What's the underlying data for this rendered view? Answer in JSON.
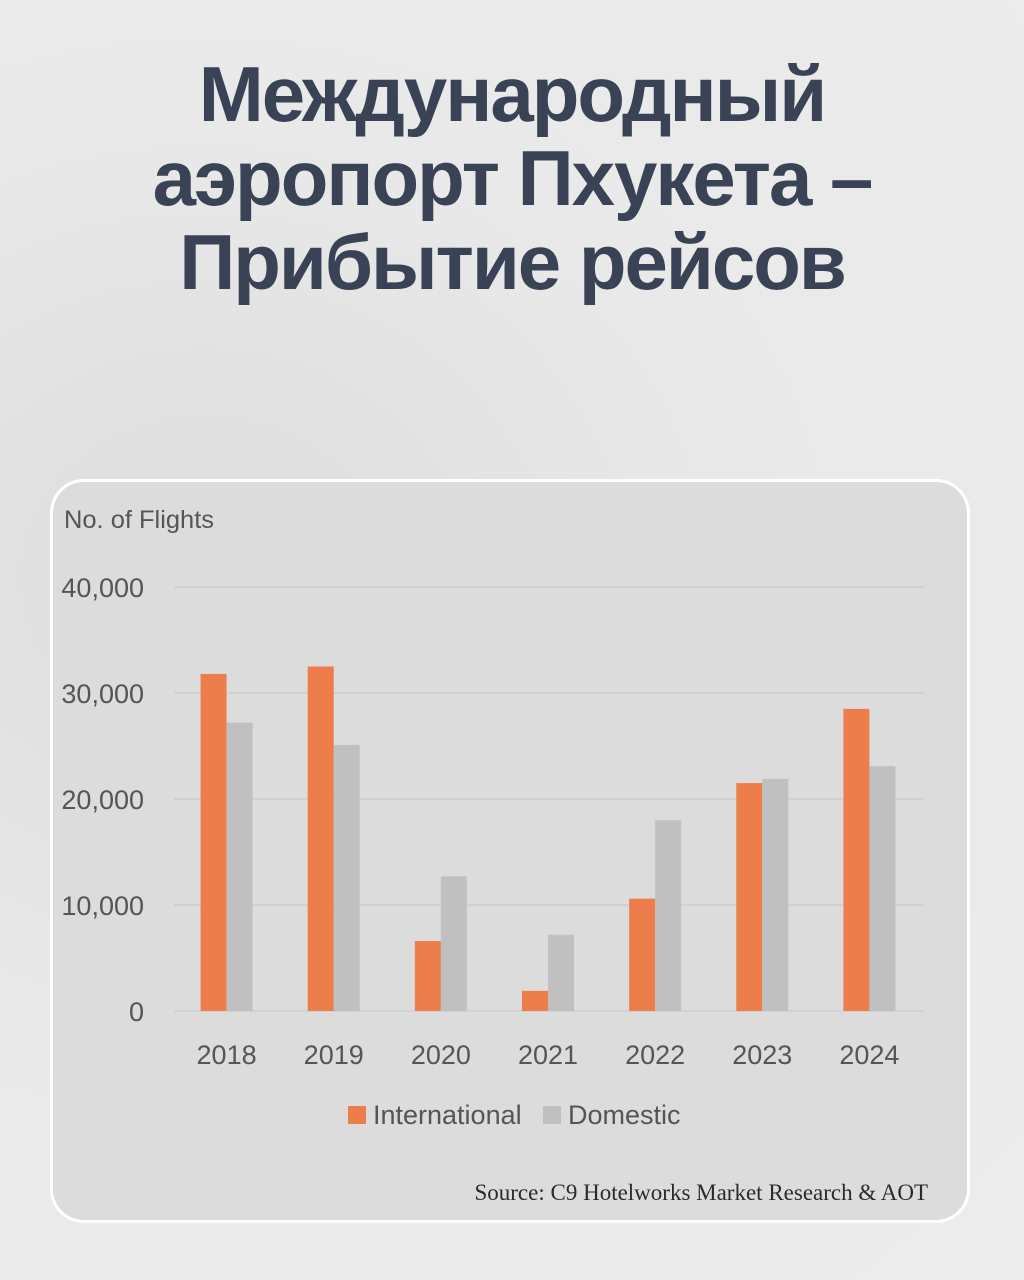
{
  "title": {
    "line1": "Международный",
    "line2": "аэропорт Пхукета –",
    "line3": "Прибытие рейсов"
  },
  "source": "Source: C9 Hotelworks Market Research & AOT",
  "colors": {
    "international": "#ee7d4c",
    "domestic": "#c0c0c0",
    "title": "#3a4256"
  },
  "chart_data": {
    "type": "bar",
    "ylabel": "No. of Flights",
    "xlabel": "",
    "categories": [
      "2018",
      "2019",
      "2020",
      "2021",
      "2022",
      "2023",
      "2024"
    ],
    "series": [
      {
        "name": "International",
        "values": [
          31800,
          32500,
          6600,
          1900,
          10600,
          21500,
          28500
        ]
      },
      {
        "name": "Domestic",
        "values": [
          27200,
          25100,
          12700,
          7200,
          18000,
          21900,
          23100
        ]
      }
    ],
    "ylim": [
      0,
      40000
    ],
    "yticks": [
      "0",
      "10,000",
      "20,000",
      "30,000",
      "40,000"
    ],
    "ytick_values": [
      0,
      10000,
      20000,
      30000,
      40000
    ],
    "grid": true,
    "legend": "bottom"
  }
}
